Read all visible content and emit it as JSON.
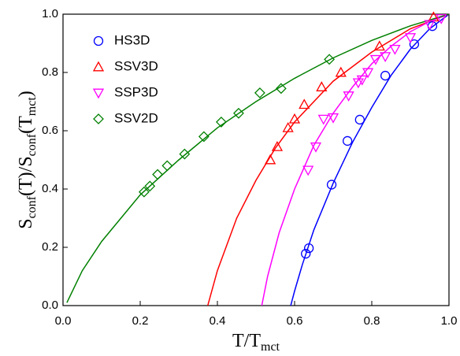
{
  "chart_data": {
    "type": "scatter",
    "x_label": {
      "parts": [
        "T/T",
        "mct"
      ],
      "sub": [
        false,
        true
      ]
    },
    "y_label": {
      "parts": [
        "S",
        "conf",
        "(T)/S",
        "conf",
        "(T",
        "mct",
        ")"
      ],
      "sub": [
        false,
        true,
        false,
        true,
        false,
        true,
        false
      ]
    },
    "xlim": [
      0,
      1
    ],
    "ylim": [
      0,
      1
    ],
    "xticks": [
      {
        "value": 0,
        "label": "0.0"
      },
      0.2,
      0.4,
      0.6,
      0.8,
      {
        "value": 1,
        "label": "1.0"
      }
    ],
    "yticks": [
      {
        "value": 0,
        "label": "0.0"
      },
      0.2,
      0.4,
      0.6,
      0.8,
      {
        "value": 1,
        "label": "1.0"
      }
    ],
    "legend": "upper left",
    "series": [
      {
        "name": "HS3D",
        "color": "#0000ff",
        "marker": "circle",
        "x": [
          0.629,
          0.637,
          0.696,
          0.737,
          0.769,
          0.835,
          0.91,
          0.957
        ],
        "values": [
          0.178,
          0.197,
          0.415,
          0.565,
          0.638,
          0.789,
          0.897,
          0.959
        ]
      },
      {
        "name": "SSV3D",
        "color": "#ff0000",
        "marker": "triangle-up",
        "x": [
          0.537,
          0.555,
          0.583,
          0.6,
          0.625,
          0.67,
          0.72,
          0.82,
          0.96
        ],
        "values": [
          0.5,
          0.545,
          0.61,
          0.64,
          0.69,
          0.75,
          0.8,
          0.89,
          0.99
        ]
      },
      {
        "name": "SSP3D",
        "color": "#ff00ff",
        "marker": "triangle-down",
        "x": [
          0.635,
          0.655,
          0.675,
          0.7,
          0.74,
          0.765,
          0.775,
          0.79,
          0.81,
          0.835,
          0.86,
          0.9,
          0.95,
          0.98
        ],
        "values": [
          0.465,
          0.545,
          0.64,
          0.645,
          0.72,
          0.765,
          0.775,
          0.8,
          0.845,
          0.855,
          0.88,
          0.92,
          0.965,
          0.985
        ]
      },
      {
        "name": "SSV2D",
        "color": "#008000",
        "marker": "diamond",
        "x": [
          0.21,
          0.225,
          0.245,
          0.27,
          0.315,
          0.365,
          0.41,
          0.455,
          0.51,
          0.565,
          0.69
        ],
        "values": [
          0.39,
          0.41,
          0.45,
          0.48,
          0.52,
          0.58,
          0.63,
          0.66,
          0.73,
          0.745,
          0.845
        ]
      }
    ],
    "fits": [
      {
        "color": "#0000ff",
        "x": [
          0.59,
          0.6,
          0.62,
          0.65,
          0.7,
          0.75,
          0.8,
          0.85,
          0.9,
          0.95,
          1.0
        ],
        "values": [
          0,
          0.05,
          0.14,
          0.26,
          0.42,
          0.56,
          0.68,
          0.79,
          0.88,
          0.95,
          1.0
        ]
      },
      {
        "color": "#ff0000",
        "x": [
          0.375,
          0.4,
          0.45,
          0.5,
          0.55,
          0.6,
          0.7,
          0.8,
          0.9,
          1.0
        ],
        "values": [
          0,
          0.12,
          0.3,
          0.43,
          0.54,
          0.63,
          0.77,
          0.87,
          0.95,
          1.0
        ]
      },
      {
        "color": "#ff00ff",
        "x": [
          0.515,
          0.53,
          0.56,
          0.6,
          0.65,
          0.7,
          0.75,
          0.8,
          0.85,
          0.9,
          0.95,
          1.0
        ],
        "values": [
          0,
          0.1,
          0.25,
          0.4,
          0.55,
          0.66,
          0.75,
          0.83,
          0.89,
          0.94,
          0.975,
          1.0
        ]
      },
      {
        "color": "#008000",
        "x": [
          0.01,
          0.05,
          0.1,
          0.2,
          0.3,
          0.4,
          0.5,
          0.6,
          0.7,
          0.8,
          0.9,
          1.0
        ],
        "values": [
          0.01,
          0.12,
          0.22,
          0.38,
          0.5,
          0.61,
          0.7,
          0.78,
          0.85,
          0.91,
          0.96,
          1.0
        ]
      }
    ]
  }
}
